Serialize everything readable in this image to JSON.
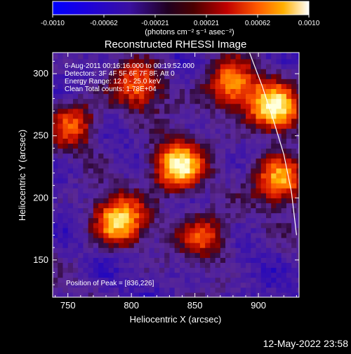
{
  "chart_data": {
    "type": "heatmap",
    "title": "Reconstructed RHESSI Image",
    "xlabel": "Heliocentric X (arcsec)",
    "ylabel": "Heliocentric Y (arcsec)",
    "xlim": [
      738,
      932
    ],
    "ylim": [
      120,
      317
    ],
    "x_ticks": [
      750,
      800,
      850,
      900
    ],
    "y_ticks": [
      150,
      200,
      250,
      300
    ],
    "colorbar": {
      "ticks": [
        "-0.0010",
        "-0.00062",
        "-0.00021",
        "0.00021",
        "0.00062",
        "0.0010"
      ],
      "range": [
        -0.001,
        0.001
      ],
      "unit_label": "(photons cm⁻² s⁻¹ asec⁻²)"
    },
    "annotations": [
      "6-Aug-2011 00:16:16.000 to 00:19:52.000",
      "Detectors: 3F 4F 5F 6F 7F 8F, Att 0",
      "Energy Range: 12.0 - 25.0 keV",
      "Clean     Total counts: 1.78E+04"
    ],
    "peak_label": "Position of Peak = [836,226]",
    "peak": [
      836,
      226
    ],
    "bright_regions": [
      {
        "x": 836,
        "y": 226,
        "level": 1.0
      },
      {
        "x": 912,
        "y": 272,
        "level": 0.95
      },
      {
        "x": 790,
        "y": 182,
        "level": 0.9
      },
      {
        "x": 918,
        "y": 215,
        "level": 0.8
      },
      {
        "x": 878,
        "y": 290,
        "level": 0.75
      },
      {
        "x": 805,
        "y": 290,
        "level": 0.6
      },
      {
        "x": 755,
        "y": 260,
        "level": 0.55
      },
      {
        "x": 858,
        "y": 170,
        "level": 0.55
      }
    ],
    "limb_curve": [
      [
        893,
        317
      ],
      [
        903,
        290
      ],
      [
        912,
        262
      ],
      [
        920,
        235
      ],
      [
        926,
        205
      ],
      [
        930,
        170
      ]
    ],
    "grid": false
  },
  "footer": {
    "timestamp": "12-May-2022 23:58"
  }
}
